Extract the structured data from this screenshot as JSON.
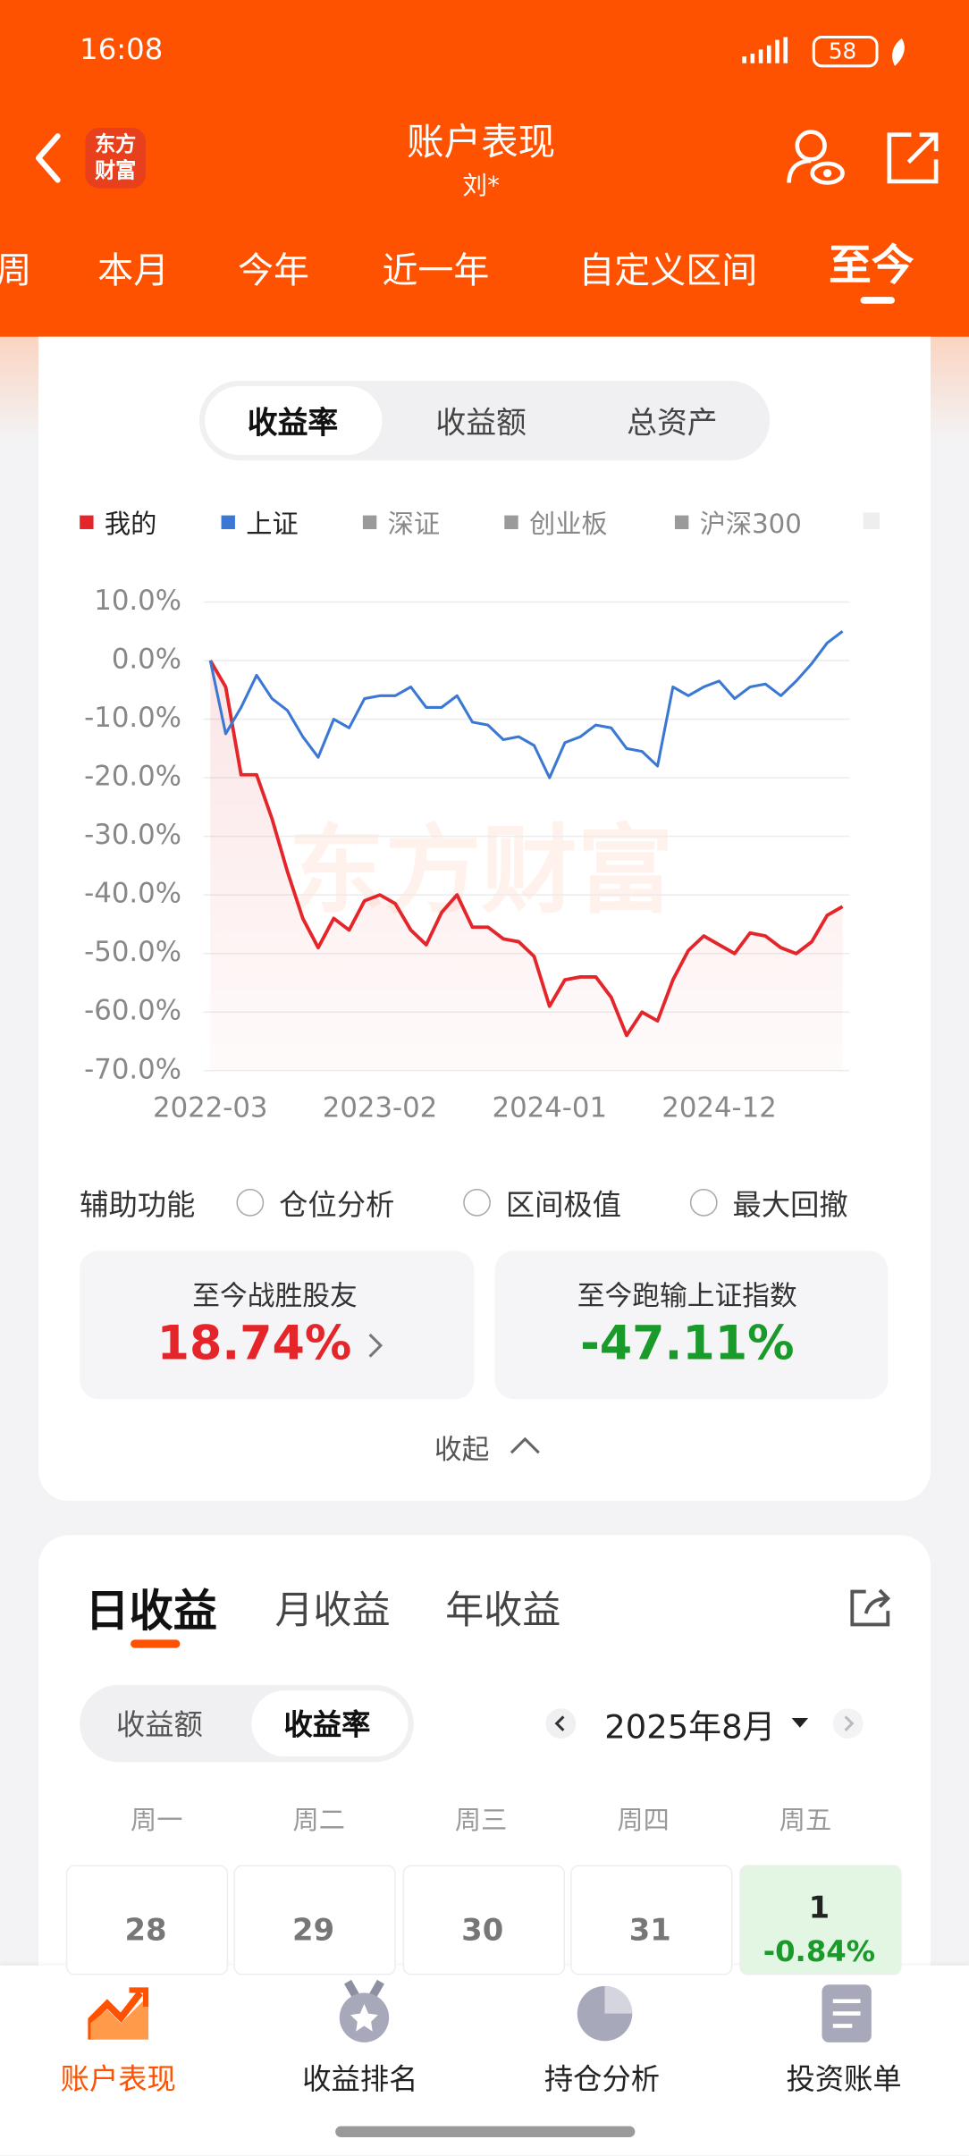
{
  "status_bar": {
    "time": "16:08",
    "battery": "58"
  },
  "header": {
    "logo": "东方财富",
    "title": "账户表现",
    "subtitle": "刘*"
  },
  "period_tabs": [
    "周",
    "本月",
    "今年",
    "近一年",
    "自定义区间",
    "至今"
  ],
  "metric_tabs": [
    "收益率",
    "收益额",
    "总资产"
  ],
  "chart_data": {
    "type": "line",
    "watermark": "东方财富",
    "categories": [
      "2022-03",
      null,
      null,
      null,
      null,
      null,
      null,
      null,
      null,
      null,
      null,
      "2023-02",
      null,
      null,
      null,
      null,
      null,
      null,
      null,
      null,
      null,
      null,
      "2024-01",
      null,
      null,
      null,
      null,
      null,
      null,
      null,
      null,
      null,
      null,
      "2024-12",
      null,
      null,
      null,
      null,
      null,
      null,
      null,
      null
    ],
    "series": [
      {
        "name": "我的",
        "color": "#e4262b",
        "area": true,
        "values": [
          0,
          -4.5,
          -19.5,
          -19.5,
          -27,
          -36,
          -44,
          -49,
          -44,
          -46,
          -41,
          -40,
          -41.5,
          -46,
          -48.5,
          -43,
          -40,
          -45.5,
          -45.5,
          -47.5,
          -48,
          -50.5,
          -59,
          -54.5,
          -54,
          -54,
          -57.5,
          -64,
          -60,
          -61.5,
          -54.5,
          -49.5,
          -47,
          -48.5,
          -50,
          -46.5,
          -47,
          -49,
          -50,
          -48,
          -43.5,
          -42
        ]
      },
      {
        "name": "上证",
        "color": "#3a78d4",
        "values": [
          0,
          -12.5,
          -8,
          -2.5,
          -6.5,
          -8.5,
          -13,
          -16.5,
          -10,
          -11.5,
          -6.5,
          -6,
          -6,
          -4.5,
          -8,
          -8,
          -6,
          -10.5,
          -11,
          -13.5,
          -13,
          -14.5,
          -20,
          -14,
          -13,
          -11,
          -11.5,
          -15,
          -15.5,
          -18,
          -4.5,
          -6,
          -4.5,
          -3.5,
          -6.5,
          -4.5,
          -4,
          -6,
          -3.5,
          -0.5,
          3,
          5
        ]
      }
    ],
    "inactive_legend": [
      {
        "name": "深证",
        "color": "#9a9a9a"
      },
      {
        "name": "创业板",
        "color": "#9a9a9a"
      },
      {
        "name": "沪深300",
        "color": "#9a9a9a"
      }
    ],
    "ylim": [
      -70,
      10
    ],
    "yticks": [
      {
        "value": 10,
        "label": "10.0%"
      },
      {
        "value": 0,
        "label": "0.0%"
      },
      {
        "value": -10,
        "label": "-10.0%"
      },
      {
        "value": -20,
        "label": "-20.0%"
      },
      {
        "value": -30,
        "label": "-30.0%"
      },
      {
        "value": -40,
        "label": "-40.0%"
      },
      {
        "value": -50,
        "label": "-50.0%"
      },
      {
        "value": -60,
        "label": "-60.0%"
      },
      {
        "value": -70,
        "label": "-70.0%"
      }
    ],
    "grid": true
  },
  "tools": {
    "label": "辅助功能",
    "options": [
      "仓位分析",
      "区间极值",
      "最大回撤"
    ]
  },
  "stats": [
    {
      "label": "至今战胜股友",
      "value": "18.74%"
    },
    {
      "label": "至今跑输上证指数",
      "value": "-47.11%"
    }
  ],
  "collapse": "收起",
  "daily": {
    "tabs": [
      "日收益",
      "月收益",
      "年收益"
    ],
    "toggle": [
      "收益额",
      "收益率"
    ],
    "month": "2025年8月",
    "weekdays": [
      "周一",
      "周二",
      "周三",
      "周四",
      "周五"
    ],
    "days": [
      {
        "day": "28"
      },
      {
        "day": "29"
      },
      {
        "day": "30"
      },
      {
        "day": "31"
      },
      {
        "day": "1",
        "value": "-0.84%"
      }
    ]
  },
  "bottom_nav": [
    "账户表现",
    "收益排名",
    "持仓分析",
    "投资账单"
  ]
}
